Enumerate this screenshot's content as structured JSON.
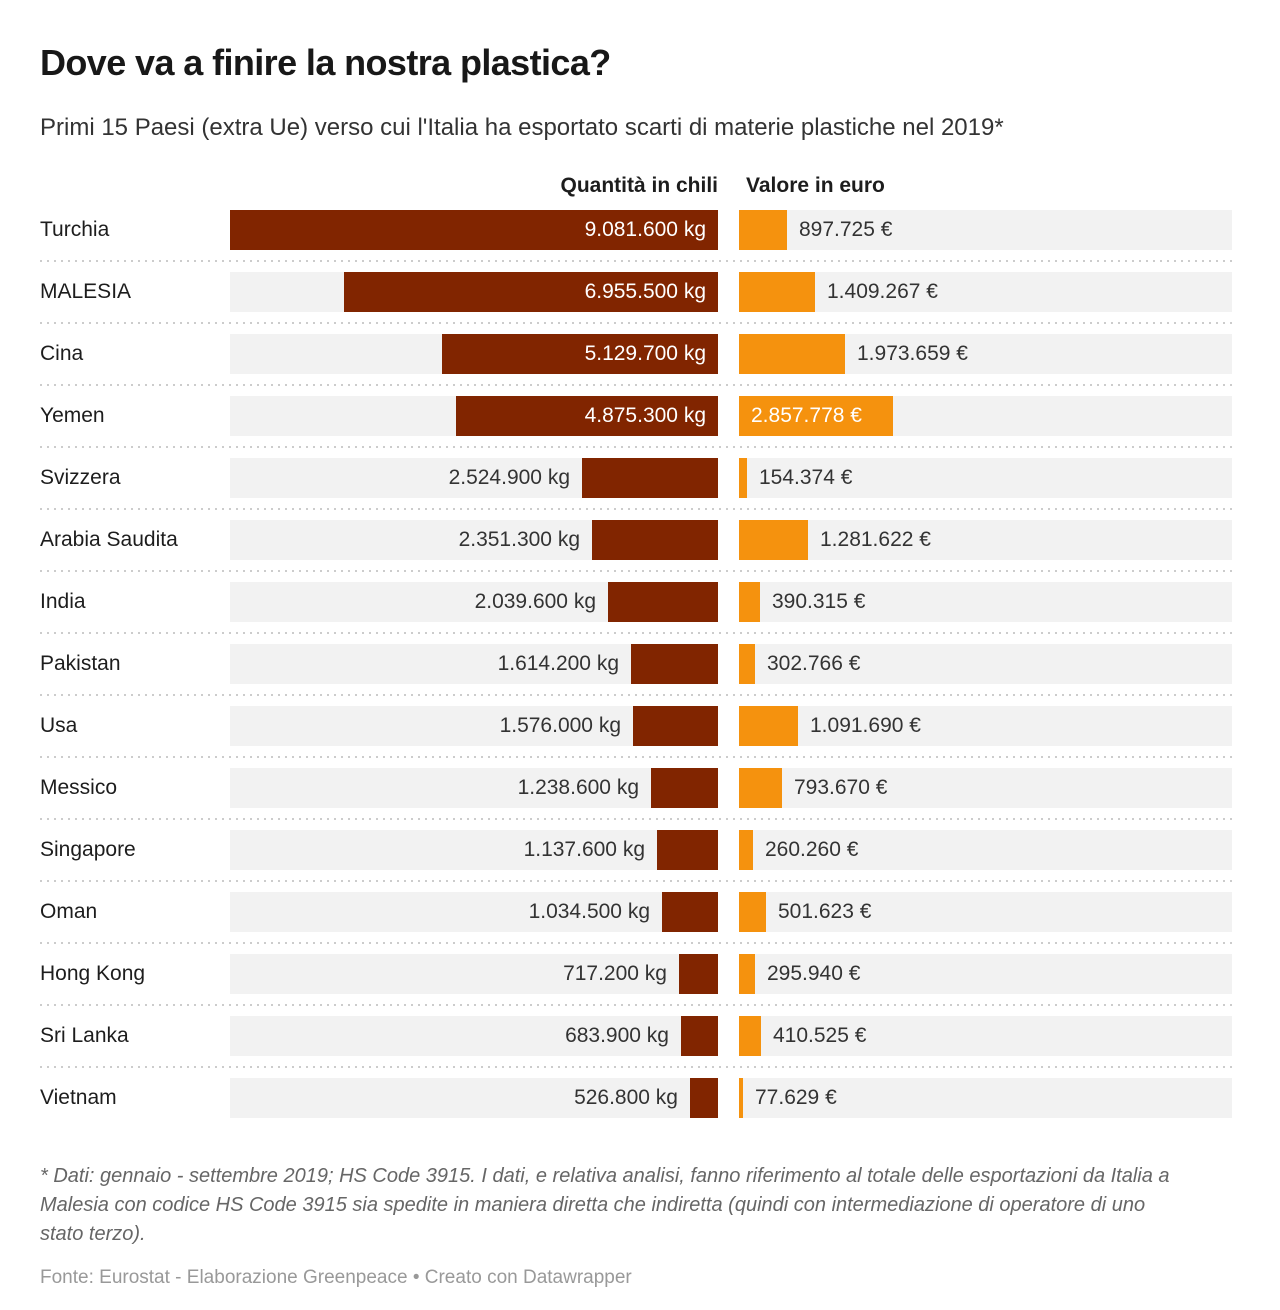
{
  "chart_data": {
    "type": "bar",
    "title": "Dove va a finire la nostra plastica?",
    "subtitle": "Primi 15 Paesi (extra Ue) verso cui l'Italia ha esportato scarti di materie plastiche nel 2019*",
    "columns": [
      "Quantità in chili",
      "Valore in euro"
    ],
    "scale_max": 9081600,
    "grid": false,
    "legend_position": "top",
    "colors": {
      "quantity_bar": "#812500",
      "value_bar": "#F5920E",
      "track": "#F2F2F2",
      "separator": "#CCCCCC"
    },
    "rows": [
      {
        "country": "Turchia",
        "quantity_kg": 9081600,
        "quantity_label": "9.081.600 kg",
        "value_eur": 897725,
        "value_label": "897.725 €"
      },
      {
        "country": "MALESIA",
        "quantity_kg": 6955500,
        "quantity_label": "6.955.500 kg",
        "value_eur": 1409267,
        "value_label": "1.409.267 €"
      },
      {
        "country": "Cina",
        "quantity_kg": 5129700,
        "quantity_label": "5.129.700 kg",
        "value_eur": 1973659,
        "value_label": "1.973.659 €"
      },
      {
        "country": "Yemen",
        "quantity_kg": 4875300,
        "quantity_label": "4.875.300 kg",
        "value_eur": 2857778,
        "value_label": "2.857.778 €"
      },
      {
        "country": "Svizzera",
        "quantity_kg": 2524900,
        "quantity_label": "2.524.900 kg",
        "value_eur": 154374,
        "value_label": "154.374 €"
      },
      {
        "country": "Arabia Saudita",
        "quantity_kg": 2351300,
        "quantity_label": "2.351.300 kg",
        "value_eur": 1281622,
        "value_label": "1.281.622 €"
      },
      {
        "country": "India",
        "quantity_kg": 2039600,
        "quantity_label": "2.039.600 kg",
        "value_eur": 390315,
        "value_label": "390.315 €"
      },
      {
        "country": "Pakistan",
        "quantity_kg": 1614200,
        "quantity_label": "1.614.200 kg",
        "value_eur": 302766,
        "value_label": "302.766 €"
      },
      {
        "country": "Usa",
        "quantity_kg": 1576000,
        "quantity_label": "1.576.000 kg",
        "value_eur": 1091690,
        "value_label": "1.091.690 €"
      },
      {
        "country": "Messico",
        "quantity_kg": 1238600,
        "quantity_label": "1.238.600 kg",
        "value_eur": 793670,
        "value_label": "793.670 €"
      },
      {
        "country": "Singapore",
        "quantity_kg": 1137600,
        "quantity_label": "1.137.600 kg",
        "value_eur": 260260,
        "value_label": "260.260 €"
      },
      {
        "country": "Oman",
        "quantity_kg": 1034500,
        "quantity_label": "1.034.500 kg",
        "value_eur": 501623,
        "value_label": "501.623 €"
      },
      {
        "country": "Hong Kong",
        "quantity_kg": 717200,
        "quantity_label": "717.200 kg",
        "value_eur": 295940,
        "value_label": "295.940 €"
      },
      {
        "country": "Sri Lanka",
        "quantity_kg": 683900,
        "quantity_label": "683.900 kg",
        "value_eur": 410525,
        "value_label": "410.525 €"
      },
      {
        "country": "Vietnam",
        "quantity_kg": 526800,
        "quantity_label": "526.800 kg",
        "value_eur": 77629,
        "value_label": "77.629 €"
      }
    ],
    "notes": "* Dati: gennaio - settembre 2019; HS Code 3915. I dati, e relativa analisi, fanno riferimento al totale delle esportazioni da Italia a Malesia con codice HS Code 3915 sia spedite in maniera diretta che indiretta (quindi con intermediazione di operatore di uno stato terzo).",
    "source": "Fonte: Eurostat - Elaborazione Greenpeace • Creato con Datawrapper"
  }
}
